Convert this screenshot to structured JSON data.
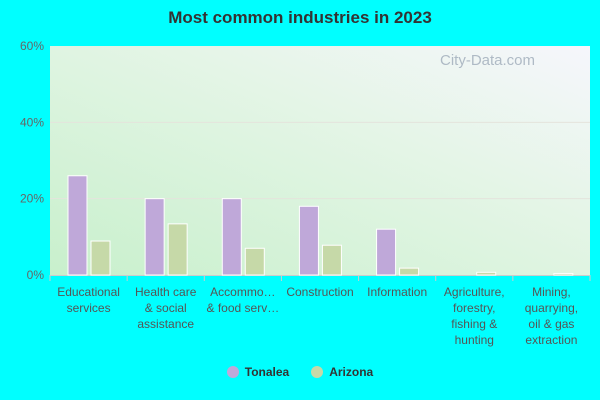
{
  "chart_data": {
    "type": "bar",
    "title": "Most common industries in 2023",
    "categories": [
      [
        "Educational",
        "services"
      ],
      [
        "Health care",
        "& social",
        "assistance"
      ],
      [
        "Accommo…",
        "& food serv…"
      ],
      [
        "Construction"
      ],
      [
        "Information"
      ],
      [
        "Agriculture,",
        "forestry,",
        "fishing &",
        "hunting"
      ],
      [
        "Mining,",
        "quarrying,",
        "oil & gas",
        "extraction"
      ]
    ],
    "series": [
      {
        "name": "Tonalea",
        "color": "#bfa8d9",
        "values": [
          26,
          20,
          20,
          18,
          12,
          0,
          0
        ]
      },
      {
        "name": "Arizona",
        "color": "#c6d9a8",
        "values": [
          8.9,
          13.4,
          7.0,
          7.8,
          1.8,
          0.7,
          0.4
        ]
      }
    ],
    "ylim": [
      0,
      60
    ],
    "yticks": [
      "0%",
      "20%",
      "40%",
      "60%"
    ],
    "grid": true,
    "legend": "bottom"
  },
  "watermark": "City-Data.com"
}
